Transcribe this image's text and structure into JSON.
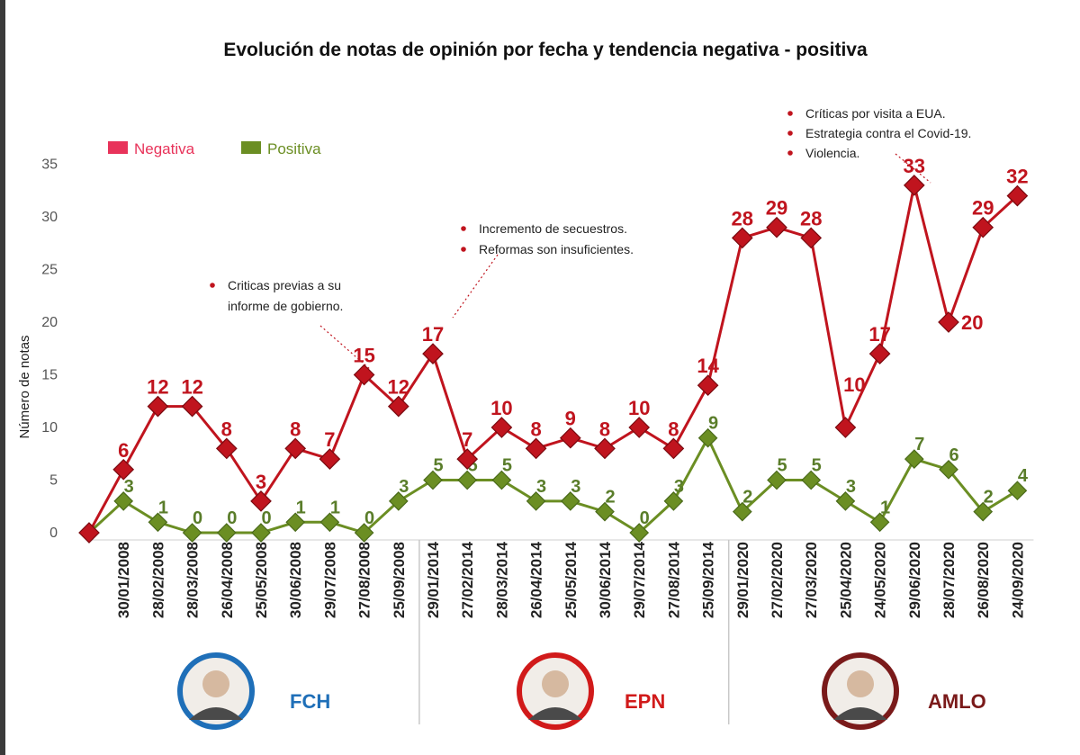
{
  "title": "Evolución de notas de opinión por fecha y tendencia negativa -  positiva",
  "colors": {
    "negative": "#c0141e",
    "negative_legend": "#e8335a",
    "positive": "#6b8e23",
    "positive_label": "#5a7d2a",
    "fch": "#1f6fb8",
    "epn": "#d11a1a",
    "amlo": "#7a1a1a"
  },
  "annotations": [
    {
      "lines": [
        "Criticas previas a su",
        "informe de gobierno."
      ]
    },
    {
      "lines": [
        "Incremento de secuestros.",
        "Reformas son insuficientes."
      ]
    },
    {
      "lines": [
        "Críticas por visita a EUA.",
        "Estrategia contra el Covid-19.",
        "Violencia."
      ]
    }
  ],
  "presidents": [
    {
      "label": "FCH",
      "icon": "president-photo-icon"
    },
    {
      "label": "EPN",
      "icon": "president-photo-icon"
    },
    {
      "label": "AMLO",
      "icon": "president-photo-icon"
    }
  ],
  "chart_data": {
    "type": "line",
    "title": "Evolución de notas de opinión por fecha y tendencia negativa -  positiva",
    "ylabel": "Número de notas",
    "xlabel": "",
    "ylim": [
      0,
      35
    ],
    "yticks": [
      0,
      5,
      10,
      15,
      20,
      25,
      30,
      35
    ],
    "grid": false,
    "legend": "top-left",
    "categories": [
      "",
      "30/01/2008",
      "28/02/2008",
      "28/03/2008",
      "26/04/2008",
      "25/05/2008",
      "30/06/2008",
      "29/07/2008",
      "27/08/2008",
      "25/09/2008",
      "29/01/2014",
      "27/02/2014",
      "28/03/2014",
      "26/04/2014",
      "25/05/2014",
      "30/06/2014",
      "29/07/2014",
      "27/08/2014",
      "25/09/2014",
      "29/01/2020",
      "27/02/2020",
      "27/03/2020",
      "25/04/2020",
      "24/05/2020",
      "29/06/2020",
      "28/07/2020",
      "26/08/2020",
      "24/09/2020"
    ],
    "series": [
      {
        "name": "Negativa",
        "values": [
          0,
          6,
          12,
          12,
          8,
          3,
          8,
          7,
          15,
          12,
          17,
          7,
          10,
          8,
          9,
          8,
          10,
          8,
          14,
          28,
          29,
          28,
          10,
          17,
          33,
          20,
          29,
          32
        ]
      },
      {
        "name": "Positiva",
        "values": [
          0,
          3,
          1,
          0,
          0,
          0,
          1,
          1,
          0,
          3,
          5,
          5,
          5,
          3,
          3,
          2,
          0,
          3,
          9,
          2,
          5,
          5,
          3,
          1,
          7,
          6,
          2,
          4
        ]
      }
    ]
  }
}
